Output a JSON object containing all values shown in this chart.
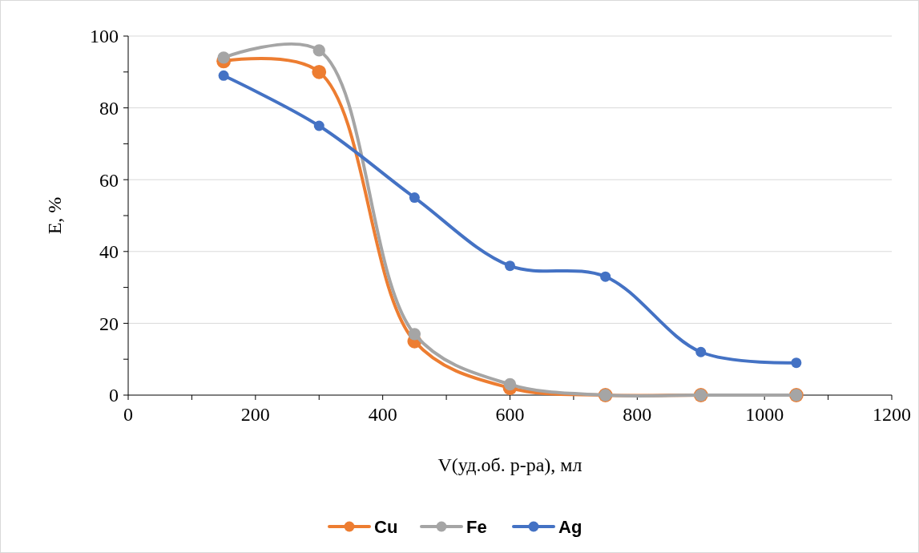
{
  "chart_data": {
    "type": "line",
    "xlabel": "V(уд.об. р-ра), мл",
    "ylabel": "E, %",
    "x": [
      150,
      300,
      450,
      600,
      750,
      900,
      1050
    ],
    "series": [
      {
        "name": "Cu",
        "color": "#ed7d31",
        "values": [
          93,
          90,
          15,
          2,
          0,
          0,
          0
        ]
      },
      {
        "name": "Fe",
        "color": "#a5a5a5",
        "values": [
          94,
          96,
          17,
          3,
          0,
          0,
          0
        ]
      },
      {
        "name": "Ag",
        "color": "#4472c4",
        "values": [
          89,
          75,
          55,
          36,
          33,
          12,
          9
        ]
      }
    ],
    "xlim": [
      0,
      1200
    ],
    "xticks": [
      0,
      {
        "value": 100,
        "label": null
      },
      200,
      {
        "value": 300,
        "label": null
      },
      400,
      {
        "value": 500,
        "label": null
      },
      600,
      {
        "value": 700,
        "label": null
      },
      800,
      {
        "value": 900,
        "label": null
      },
      1000,
      {
        "value": 1100,
        "label": null
      },
      1200
    ],
    "ylim": [
      0,
      100
    ],
    "yticks": [
      0,
      {
        "value": 10,
        "label": null
      },
      20,
      {
        "value": 30,
        "label": null
      },
      40,
      {
        "value": 50,
        "label": null
      },
      60,
      {
        "value": 70,
        "label": null
      },
      80,
      {
        "value": 90,
        "label": null
      },
      100
    ],
    "grid": "y",
    "legend": "bottom",
    "marker": "circle",
    "line_style": "solid"
  }
}
